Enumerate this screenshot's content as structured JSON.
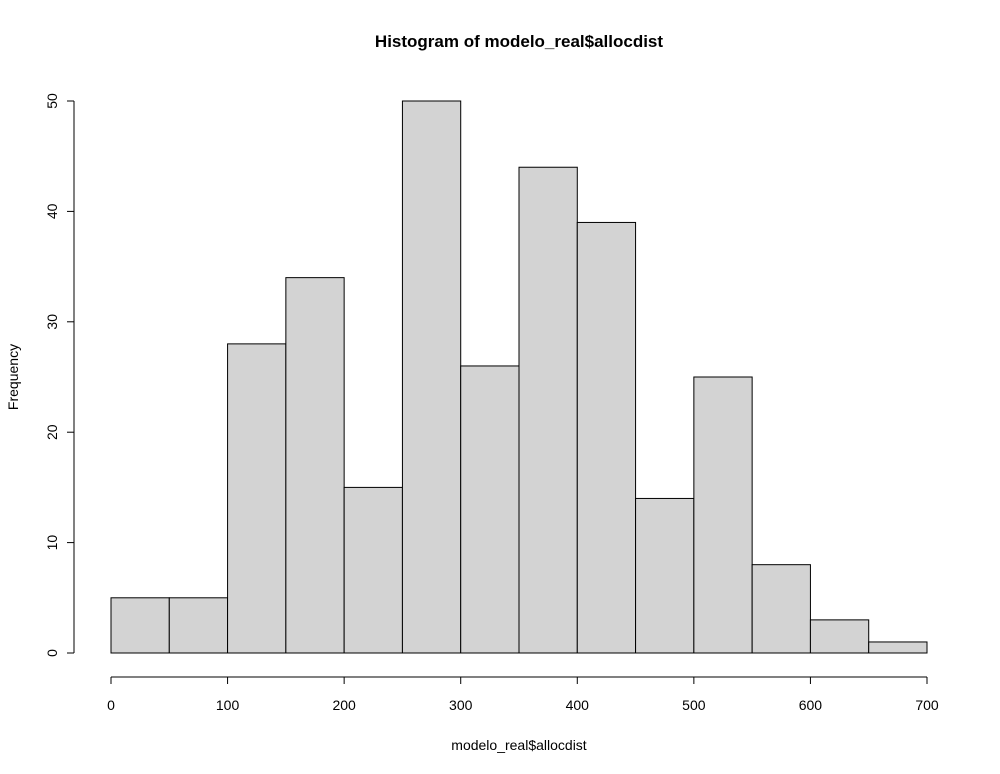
{
  "chart_data": {
    "type": "bar",
    "title": "Histogram of modelo_real$allocdist",
    "xlabel": "modelo_real$allocdist",
    "ylabel": "Frequency",
    "bins": [
      {
        "start": 0,
        "end": 50,
        "count": 5
      },
      {
        "start": 50,
        "end": 100,
        "count": 5
      },
      {
        "start": 100,
        "end": 150,
        "count": 28
      },
      {
        "start": 150,
        "end": 200,
        "count": 34
      },
      {
        "start": 200,
        "end": 250,
        "count": 15
      },
      {
        "start": 250,
        "end": 300,
        "count": 50
      },
      {
        "start": 300,
        "end": 350,
        "count": 26
      },
      {
        "start": 350,
        "end": 400,
        "count": 44
      },
      {
        "start": 400,
        "end": 450,
        "count": 39
      },
      {
        "start": 450,
        "end": 500,
        "count": 14
      },
      {
        "start": 500,
        "end": 550,
        "count": 25
      },
      {
        "start": 550,
        "end": 600,
        "count": 8
      },
      {
        "start": 600,
        "end": 650,
        "count": 3
      },
      {
        "start": 650,
        "end": 700,
        "count": 1
      }
    ],
    "xlim": [
      0,
      700
    ],
    "ylim": [
      0,
      50
    ],
    "x_ticks": [
      0,
      100,
      200,
      300,
      400,
      500,
      600,
      700
    ],
    "y_ticks": [
      0,
      10,
      20,
      30,
      40,
      50
    ],
    "bar_color": "#d3d3d3",
    "border_color": "#000000",
    "grid": false
  }
}
